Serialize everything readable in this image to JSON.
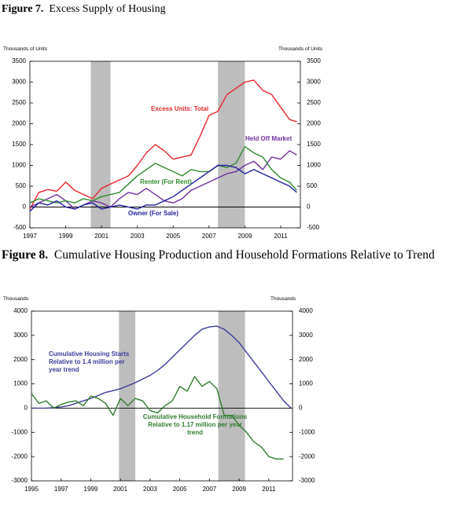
{
  "chart_data": [
    {
      "type": "line",
      "figure_label": "Figure 7.",
      "title": "Excess Supply of Housing",
      "y_label": "Thousands of Units",
      "y2_label": "Thousands of Units",
      "x": [
        1997,
        1997.5,
        1998,
        1998.5,
        1999,
        1999.5,
        2000,
        2000.5,
        2001,
        2001.5,
        2002,
        2002.5,
        2003,
        2003.5,
        2004,
        2004.5,
        2005,
        2005.5,
        2006,
        2006.5,
        2007,
        2007.5,
        2008,
        2008.5,
        2009,
        2009.5,
        2010,
        2010.5,
        2011,
        2011.5,
        2011.9
      ],
      "series": [
        {
          "name": "Excess Units: Total",
          "color": "#e8262a",
          "values": [
            -50,
            350,
            420,
            380,
            600,
            400,
            300,
            200,
            450,
            550,
            650,
            750,
            1000,
            1300,
            1500,
            1350,
            1150,
            1200,
            1250,
            1700,
            2200,
            2300,
            2700,
            2850,
            3000,
            3050,
            2800,
            2700,
            2400,
            2100,
            2050
          ]
        },
        {
          "name": "Held Off Market",
          "color": "#7030a0",
          "values": [
            0,
            100,
            200,
            300,
            150,
            -50,
            50,
            150,
            100,
            0,
            200,
            350,
            300,
            450,
            300,
            150,
            100,
            200,
            400,
            500,
            600,
            700,
            800,
            850,
            1000,
            1100,
            900,
            1200,
            1150,
            1350,
            1250
          ]
        },
        {
          "name": "Renter (For Rent)",
          "color": "#2e8b2e",
          "values": [
            100,
            200,
            150,
            100,
            150,
            100,
            200,
            150,
            250,
            300,
            350,
            550,
            750,
            900,
            1050,
            950,
            850,
            750,
            900,
            850,
            850,
            1000,
            950,
            1050,
            1450,
            1300,
            1200,
            900,
            700,
            600,
            400
          ]
        },
        {
          "name": "Owner (For Sale)",
          "color": "#1f1fa0",
          "values": [
            -100,
            100,
            50,
            150,
            0,
            -50,
            50,
            100,
            -50,
            0,
            50,
            0,
            -50,
            50,
            50,
            150,
            250,
            400,
            550,
            700,
            850,
            1000,
            1000,
            950,
            800,
            900,
            800,
            700,
            600,
            500,
            350
          ]
        }
      ],
      "shaded_periods": [
        [
          2000.4,
          2001.5
        ],
        [
          2007.5,
          2009
        ]
      ],
      "xlim": [
        1997,
        2012.1
      ],
      "xticks": [
        1997,
        1999,
        2001,
        2003,
        2005,
        2007,
        2009,
        2011
      ],
      "ylim": [
        -500,
        3500
      ],
      "yticks": [
        -500,
        0,
        500,
        1000,
        1500,
        2000,
        2500,
        3000,
        3500
      ],
      "grid": false
    },
    {
      "type": "line",
      "figure_label": "Figure 8.",
      "title": "Cumulative Housing Production and Household Formations Relative to Trend",
      "y_label": "Thousands",
      "y2_label": "Thousands",
      "x": [
        1995,
        1995.5,
        1996,
        1996.5,
        1997,
        1997.5,
        1998,
        1998.5,
        1999,
        1999.5,
        2000,
        2000.5,
        2001,
        2001.5,
        2002,
        2002.5,
        2003,
        2003.5,
        2004,
        2004.5,
        2005,
        2005.5,
        2006,
        2006.5,
        2007,
        2007.5,
        2008,
        2008.5,
        2009,
        2009.5,
        2010,
        2010.5,
        2011,
        2011.5,
        2012,
        2012.5
      ],
      "series": [
        {
          "name": "Cumulative Housing Starts Relative to 1.4 million per year trend",
          "color": "#3b3b9b",
          "values": [
            0,
            0,
            0,
            20,
            50,
            100,
            200,
            300,
            400,
            520,
            650,
            720,
            800,
            920,
            1050,
            1200,
            1350,
            1550,
            1800,
            2100,
            2400,
            2700,
            3000,
            3250,
            3350,
            3380,
            3250,
            3000,
            2700,
            2300,
            1900,
            1500,
            1100,
            700,
            300,
            0
          ]
        },
        {
          "name": "Cumulative Household Formations Relative to 1.17 million per year trend",
          "color": "#2f7d2f",
          "values": [
            600,
            200,
            300,
            0,
            150,
            250,
            300,
            100,
            500,
            400,
            200,
            -300,
            400,
            100,
            400,
            300,
            -100,
            -200,
            100,
            300,
            900,
            700,
            1300,
            900,
            1100,
            800,
            -300,
            -300,
            -700,
            -1000,
            -1400,
            -1600,
            -2000,
            -2100,
            -2100,
            null
          ]
        }
      ],
      "shaded_periods": [
        [
          2000.9,
          2002
        ],
        [
          2007.6,
          2009.4
        ]
      ],
      "xlim": [
        1995,
        2012.6
      ],
      "xticks": [
        1995,
        1997,
        1999,
        2001,
        2003,
        2005,
        2007,
        2009,
        2011
      ],
      "ylim": [
        -3000,
        4000
      ],
      "yticks": [
        -3000,
        -2000,
        -1000,
        0,
        1000,
        2000,
        3000,
        4000
      ],
      "grid": false
    }
  ]
}
